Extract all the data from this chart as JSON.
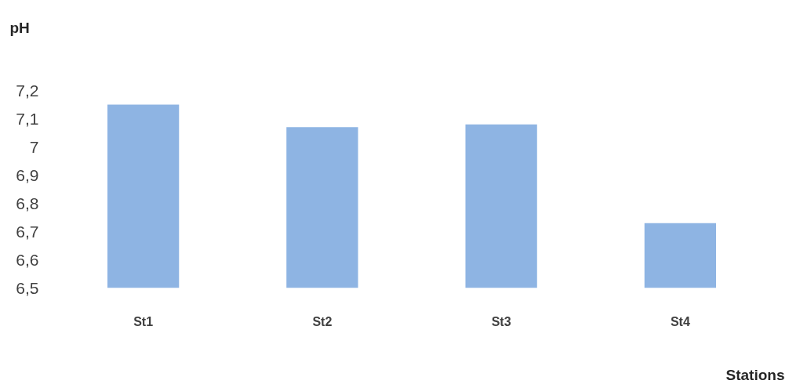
{
  "chart_data": {
    "type": "bar",
    "ylabel": "pH",
    "xlabel": "Stations",
    "categories": [
      "St1",
      "St2",
      "St3",
      "St4"
    ],
    "values": [
      7.15,
      7.07,
      7.08,
      6.73
    ],
    "color": "#8eb4e3",
    "ylim": [
      6.5,
      7.2
    ],
    "yticks": [
      {
        "value": 6.5,
        "label": "6,5"
      },
      {
        "value": 6.6,
        "label": "6,6"
      },
      {
        "value": 6.7,
        "label": "6,7"
      },
      {
        "value": 6.8,
        "label": "6,8"
      },
      {
        "value": 6.9,
        "label": "6,9"
      },
      7,
      {
        "value": 7.1,
        "label": "7,1"
      },
      {
        "value": 7.2,
        "label": "7,2"
      }
    ],
    "grid": false
  }
}
